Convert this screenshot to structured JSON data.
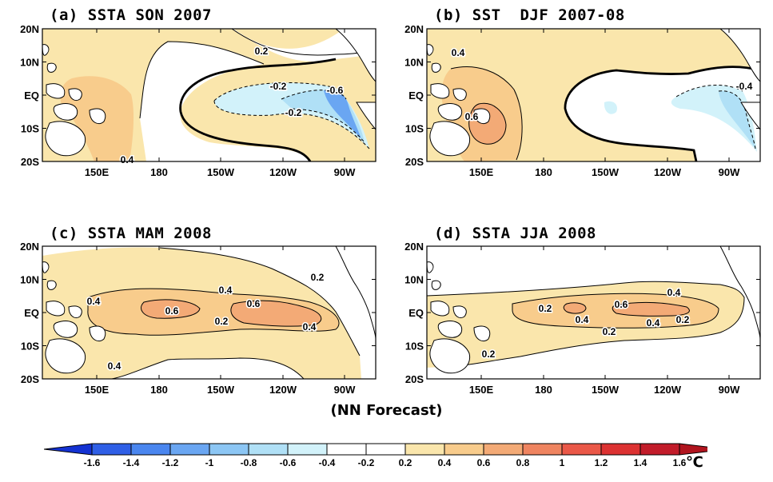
{
  "panels": [
    {
      "title": "(a) SSTA SON 2007",
      "labels": [
        "0.2",
        "-0.2",
        "-0.6",
        "-0.2",
        "0.4"
      ]
    },
    {
      "title": "(b) SST  DJF 2007-08",
      "labels": [
        "0.4",
        "0.6",
        "-0.4"
      ]
    },
    {
      "title": "(c) SSTA MAM 2008",
      "labels": [
        "0.4",
        "0.2",
        "0.4",
        "0.6",
        "0.6",
        "0.2",
        "0.4",
        "0.4"
      ]
    },
    {
      "title": "(d) SSTA JJA 2008",
      "labels": [
        "0.2",
        "0.4",
        "0.6",
        "0.2",
        "0.4",
        "0.4",
        "0.2",
        "0.2"
      ]
    }
  ],
  "lat_ticks": [
    "20N",
    "10N",
    "EQ",
    "10S",
    "20S"
  ],
  "lon_ticks": [
    "150E",
    "180",
    "150W",
    "120W",
    "90W"
  ],
  "footer": "(NN Forecast)",
  "colorbar": {
    "ticks": [
      "-1.6",
      "-1.4",
      "-1.2",
      "-1",
      "-0.8",
      "-0.6",
      "-0.4",
      "-0.2",
      "0.2",
      "0.4",
      "0.6",
      "0.8",
      "1",
      "1.2",
      "1.4",
      "1.6"
    ],
    "unit": "℃",
    "colors": [
      "#1432d2",
      "#2f5fe6",
      "#4a86ef",
      "#6aa6f2",
      "#8cc6f4",
      "#b0e0f6",
      "#d2f2fa",
      "#ffffff",
      "#fae6ac",
      "#f8cc8c",
      "#f3aa76",
      "#ef8460",
      "#ea5848",
      "#dc3232",
      "#c21c2a",
      "#b0141e"
    ]
  }
}
